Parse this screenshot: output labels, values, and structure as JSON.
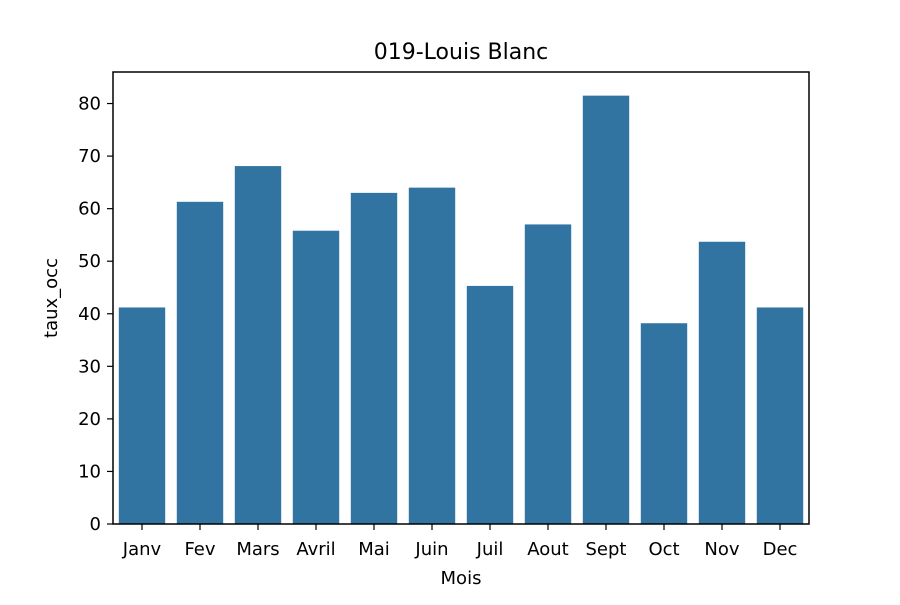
{
  "chart_data": {
    "type": "bar",
    "title": "019-Louis Blanc",
    "xlabel": "Mois",
    "ylabel": "taux_occ",
    "categories": [
      "Janv",
      "Fev",
      "Mars",
      "Avril",
      "Mai",
      "Juin",
      "Juil",
      "Aout",
      "Sept",
      "Oct",
      "Nov",
      "Dec"
    ],
    "values": [
      41.2,
      61.3,
      68.1,
      55.8,
      63.0,
      64.0,
      45.3,
      57.0,
      81.5,
      38.2,
      53.7,
      41.2
    ],
    "ylim": [
      0,
      86
    ],
    "yticks": [
      0,
      10,
      20,
      30,
      40,
      50,
      60,
      70,
      80
    ],
    "grid": false,
    "bar_color": "#3274a1"
  }
}
